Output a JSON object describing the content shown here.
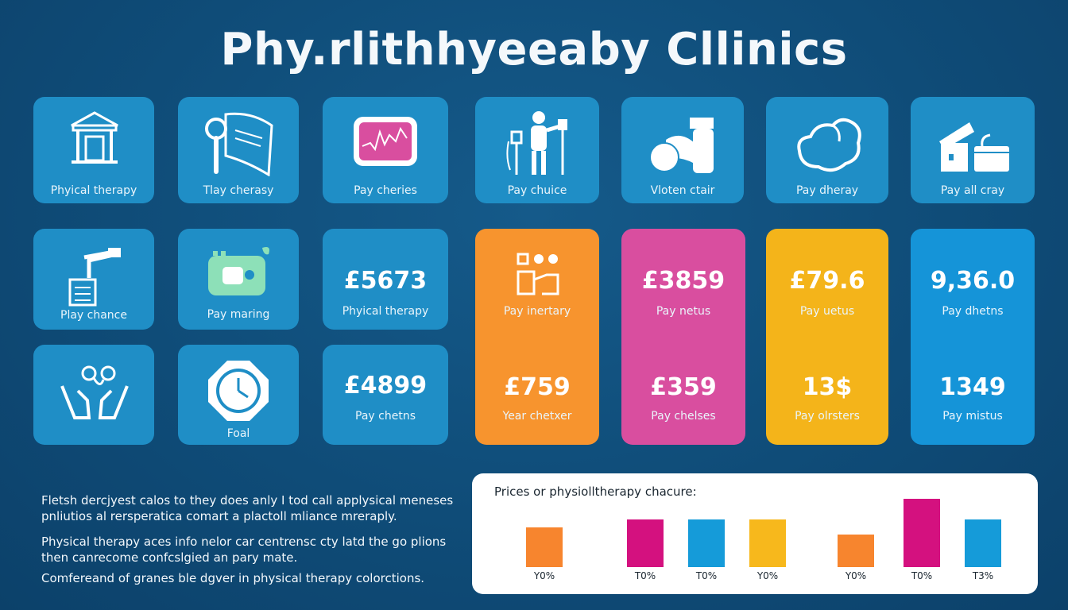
{
  "title": "Phy.rlithhyeeaby Cllinics",
  "tiles_row1": [
    {
      "label": "Phyical therapy",
      "icon": "building-icon"
    },
    {
      "label": "Tlay cherasy",
      "icon": "magnifier-scroll-icon"
    },
    {
      "label": "Pay cheries",
      "icon": "monitor-chart-icon"
    },
    {
      "label": "Pay chuice",
      "icon": "person-equipment-icon"
    },
    {
      "label": "Vloten ctair",
      "icon": "bottle-ball-icon"
    },
    {
      "label": "Pay dheray",
      "icon": "bag-icon"
    },
    {
      "label": "Pay all cray",
      "icon": "boxes-icon"
    }
  ],
  "tiles_row2": [
    {
      "label": "Play chance",
      "icon": "faucet-icon"
    },
    {
      "label": "Pay maring",
      "icon": "camera-icon"
    },
    {
      "value": "£5673",
      "label": "Phyical therapy"
    },
    {
      "label": "Pay inertary",
      "icon": "grid-dots-icon"
    },
    {
      "value": "£3859",
      "label": "Pay netus"
    },
    {
      "value": "£79.6",
      "label": "Pay uetus"
    },
    {
      "value": "9,36.0",
      "label": "Pay dhetns"
    }
  ],
  "tiles_row3": [
    {
      "label": "",
      "icon": "hands-icon"
    },
    {
      "label": "Foal",
      "icon": "clock-icon"
    },
    {
      "value": "£4899",
      "label": "Pay chetns"
    },
    {
      "value": "£759",
      "label": "Year chetxer"
    },
    {
      "value": "£359",
      "label": "Pay chelses"
    },
    {
      "value": "13$",
      "label": "Pay olrsters"
    },
    {
      "value": "1349",
      "label": "Pay mistus"
    }
  ],
  "paragraphs": [
    "Fletsh dercjyest calos to they does anly I tod call applysical meneses pnliutios al rersperatica comart a plactoll mliance mreraply.",
    "Physical therapy aces info nelor car centrensc cty latd the go plions then canrecome confcslgied an pary mate.",
    "Comfereand of granes ble dgver in physical therapy colorctions."
  ],
  "colors": {
    "background": "#0f4c78",
    "tile": "#1f8ec6",
    "orange": "#f7942e",
    "magenta": "#d94e9f",
    "yellow": "#f4b41a",
    "blue": "#1594d8"
  },
  "chart_data": {
    "type": "bar",
    "title": "Prices or physiolltherapy chacure:",
    "categories": [
      "Y0%",
      "T0%",
      "T0%",
      "Y0%",
      "Y0%",
      "T0%",
      "T3%"
    ],
    "values": [
      42,
      50,
      50,
      50,
      34,
      72,
      50
    ],
    "colors": [
      "#f7852e",
      "#d4117f",
      "#159bd9",
      "#f7b81c",
      "#f7852e",
      "#d4117f",
      "#159bd9"
    ],
    "ylim": [
      0,
      80
    ]
  }
}
